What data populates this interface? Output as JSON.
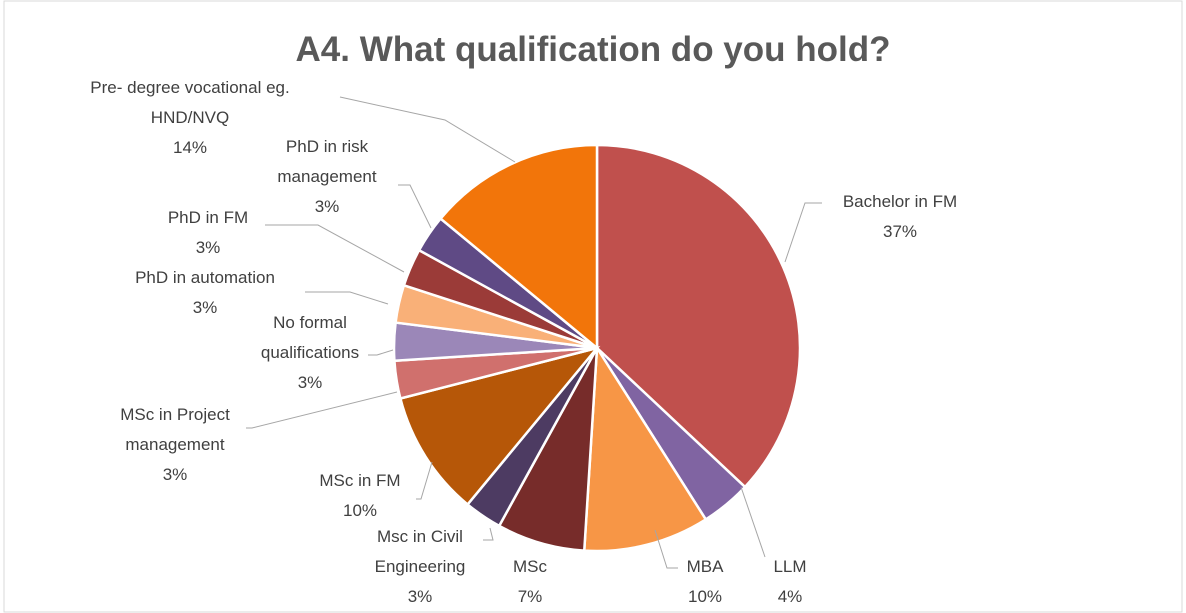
{
  "chart_data": {
    "type": "pie",
    "title": "A4. What qualification do you hold?",
    "categories": [
      "Bachelor in FM",
      "LLM",
      "MBA",
      "MSc",
      "Msc in Civil Engineering",
      "MSc in FM",
      "MSc in Project management",
      "No formal qualifications",
      "PhD in automation",
      "PhD in FM",
      "PhD in risk management",
      "Pre- degree vocational eg. HND/NVQ"
    ],
    "values": [
      37,
      4,
      10,
      7,
      3,
      10,
      3,
      3,
      3,
      3,
      3,
      14
    ],
    "value_labels": [
      "37%",
      "4%",
      "10%",
      "7%",
      "3%",
      "10%",
      "3%",
      "3%",
      "3%",
      "3%",
      "3%",
      "14%"
    ],
    "colors": [
      "#c0504d",
      "#8064a2",
      "#f79646",
      "#772c2a",
      "#4d3b62",
      "#b65708",
      "#d0706d",
      "#9b87b8",
      "#f9b078",
      "#9b3b38",
      "#5f4a85",
      "#f2750a"
    ]
  }
}
